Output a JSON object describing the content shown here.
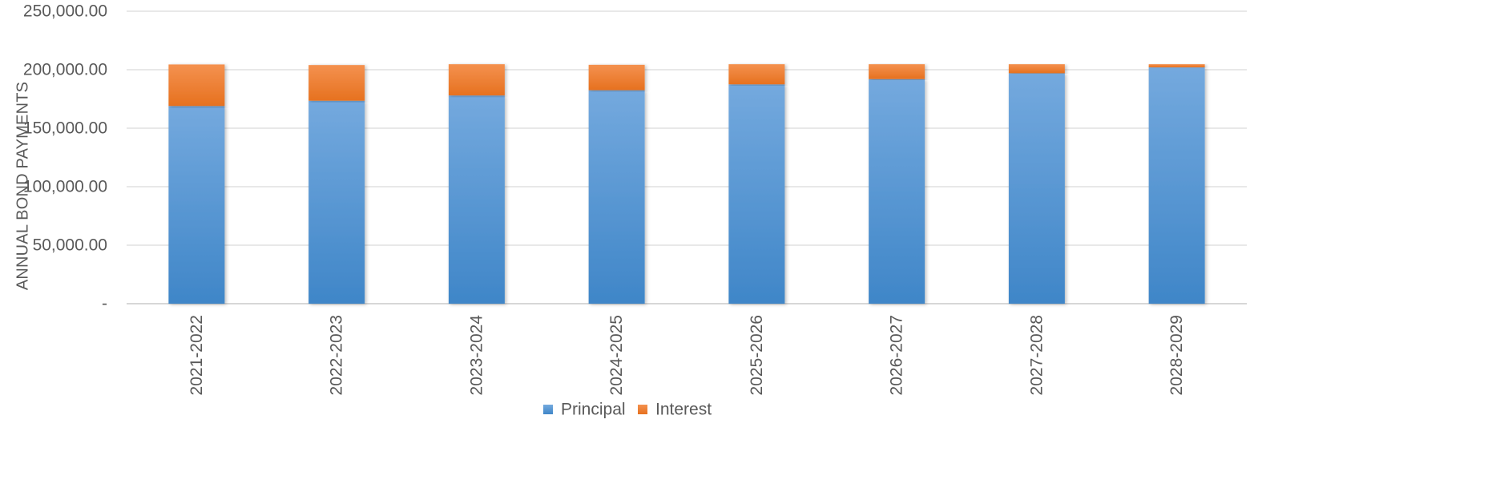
{
  "chart_data": {
    "type": "bar",
    "stacked": true,
    "title": "",
    "xlabel": "",
    "ylabel": "ANNUAL BOND PAYMENTS",
    "ylim": [
      0,
      250000
    ],
    "yticks": [
      {
        "value": 0,
        "label": "-"
      },
      {
        "value": 50000,
        "label": "50,000.00"
      },
      {
        "value": 100000,
        "label": "100,000.00"
      },
      {
        "value": 150000,
        "label": "150,000.00"
      },
      {
        "value": 200000,
        "label": "200,000.00"
      },
      {
        "value": 250000,
        "label": "250,000.00"
      }
    ],
    "grid": true,
    "legend_position": "bottom",
    "categories": [
      "2021-2022",
      "2022-2023",
      "2023-2024",
      "2024-2025",
      "2025-2026",
      "2026-2027",
      "2027-2028",
      "2028-2029"
    ],
    "series": [
      {
        "name": "Principal",
        "color": "#5B9BD5",
        "values": [
          169000,
          173500,
          178000,
          182500,
          187500,
          192000,
          197000,
          202000
        ]
      },
      {
        "name": "Interest",
        "color": "#ED7D31",
        "values": [
          35500,
          30500,
          26700,
          21700,
          17200,
          12700,
          7700,
          2700
        ]
      }
    ]
  }
}
